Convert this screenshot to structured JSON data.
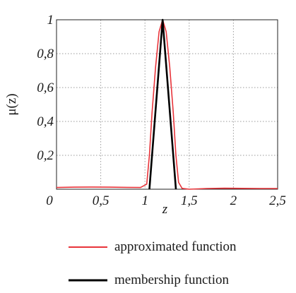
{
  "chart_data": {
    "type": "line",
    "xlabel": "z",
    "ylabel": "μ(z)",
    "xlim": [
      0,
      2.5
    ],
    "ylim": [
      0,
      1
    ],
    "x_ticks": [
      {
        "value": 0,
        "label": "0"
      },
      {
        "value": 0.5,
        "label": "0,5"
      },
      {
        "value": 1,
        "label": "1"
      },
      {
        "value": 1.5,
        "label": "1,5"
      },
      {
        "value": 2,
        "label": "2"
      },
      {
        "value": 2.5,
        "label": "2,5"
      }
    ],
    "y_ticks": [
      {
        "value": 0.2,
        "label": "0,2"
      },
      {
        "value": 0.4,
        "label": "0,4"
      },
      {
        "value": 0.6,
        "label": "0,6"
      },
      {
        "value": 0.8,
        "label": "0,8"
      },
      {
        "value": 1,
        "label": "1"
      }
    ],
    "grid": true,
    "legend_position": "bottom",
    "series": [
      {
        "name": "approximated function",
        "color": "#e8343a",
        "x": [
          0,
          0.2,
          0.4,
          0.6,
          0.8,
          0.95,
          1.02,
          1.05,
          1.08,
          1.12,
          1.16,
          1.2,
          1.24,
          1.28,
          1.32,
          1.35,
          1.38,
          1.42,
          1.5,
          1.7,
          1.9,
          2.1,
          2.3,
          2.5
        ],
        "y": [
          0.01,
          0.012,
          0.013,
          0.012,
          0.011,
          0.01,
          0.03,
          0.2,
          0.45,
          0.72,
          0.93,
          1.0,
          0.93,
          0.72,
          0.45,
          0.2,
          0.04,
          0.005,
          0.0,
          0.004,
          0.006,
          0.005,
          0.004,
          0.004
        ]
      },
      {
        "name": "membership function",
        "color": "#000000",
        "x": [
          1.05,
          1.2,
          1.35
        ],
        "y": [
          0,
          1,
          0
        ]
      }
    ]
  }
}
